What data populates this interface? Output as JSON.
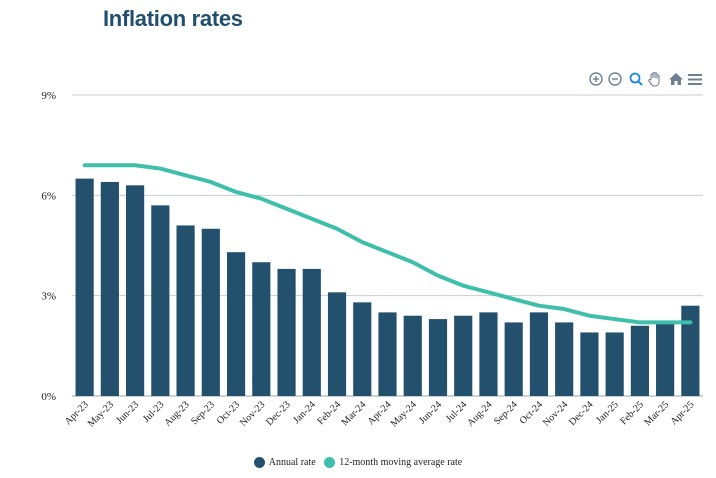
{
  "title": "Inflation rates",
  "toolbar": {
    "zoom_in_icon": "zoom-in-icon",
    "zoom_out_icon": "zoom-out-icon",
    "selection_zoom_icon": "magnifier-icon",
    "pan_icon": "pan-hand-icon",
    "reset_icon": "home-icon",
    "menu_icon": "menu-icon"
  },
  "chart_data": {
    "type": "bar",
    "categories": [
      "Apr-23",
      "May-23",
      "Jun-23",
      "Jul-23",
      "Aug-23",
      "Sep-23",
      "Oct-23",
      "Nov-23",
      "Dec-23",
      "Jan-24",
      "Feb-24",
      "Mar-24",
      "Apr-24",
      "May-24",
      "Jun-24",
      "Jul-24",
      "Aug-24",
      "Sep-24",
      "Oct-24",
      "Nov-24",
      "Dec-24",
      "Jan-25",
      "Feb-25",
      "Mar-25",
      "Apr-25"
    ],
    "series": [
      {
        "name": "Annual rate",
        "type": "bar",
        "color": "#22506d",
        "values": [
          6.5,
          6.4,
          6.3,
          5.7,
          5.1,
          5.0,
          4.3,
          4.0,
          3.8,
          3.8,
          3.1,
          2.8,
          2.5,
          2.4,
          2.3,
          2.4,
          2.5,
          2.2,
          2.5,
          2.2,
          1.9,
          1.9,
          2.1,
          2.2,
          2.7
        ]
      },
      {
        "name": "12-month moving average rate",
        "type": "line",
        "color": "#3dbfa9",
        "values": [
          6.9,
          6.9,
          6.9,
          6.8,
          6.6,
          6.4,
          6.1,
          5.9,
          5.6,
          5.3,
          5.0,
          4.6,
          4.3,
          4.0,
          3.6,
          3.3,
          3.1,
          2.9,
          2.7,
          2.6,
          2.4,
          2.3,
          2.2,
          2.2,
          2.2
        ]
      }
    ],
    "y_tick_labels": [
      "0%",
      "3%",
      "6%",
      "9%"
    ],
    "ylim": [
      0,
      9
    ],
    "grid": true,
    "legend_position": "bottom-center"
  }
}
